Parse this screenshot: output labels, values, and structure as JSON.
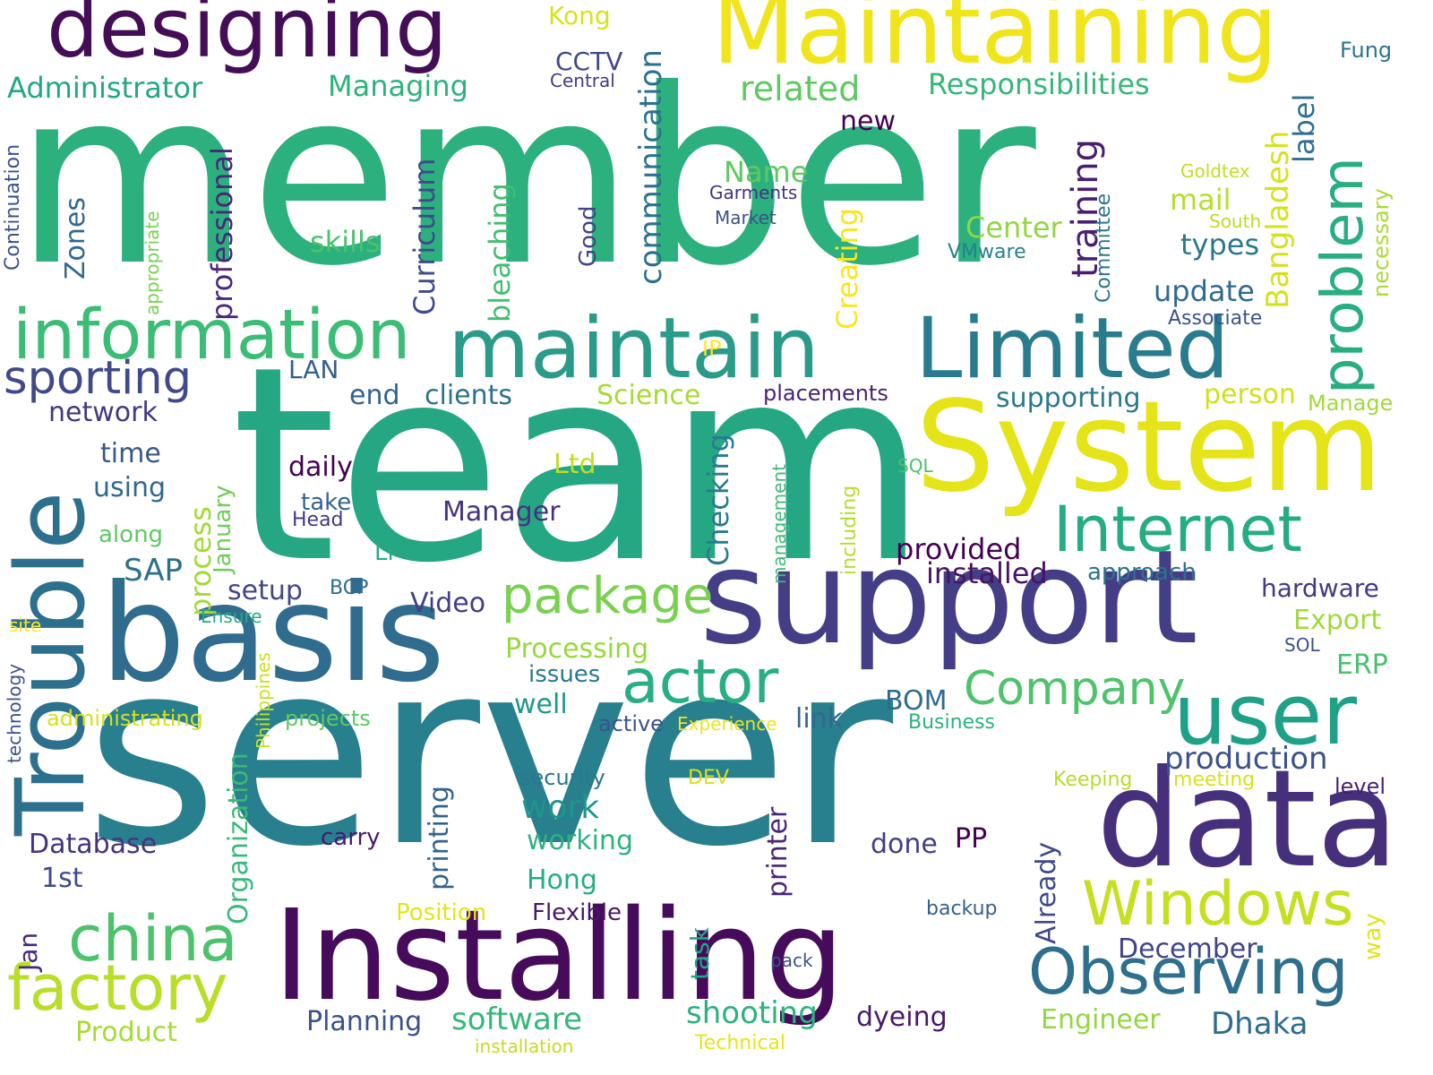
{
  "words": [
    {
      "text": "member",
      "color": "#2cb17e"
    },
    {
      "text": "team",
      "color": "#26a784"
    },
    {
      "text": "server",
      "color": "#287f8e"
    },
    {
      "text": "Installing",
      "color": "#470b5b"
    },
    {
      "text": "support",
      "color": "#433e85"
    },
    {
      "text": "basis",
      "color": "#2f6c8e"
    },
    {
      "text": "data",
      "color": "#46307c"
    },
    {
      "text": "System",
      "color": "#e5e419"
    },
    {
      "text": "Maintaining",
      "color": "#f0e51c"
    },
    {
      "text": "designing",
      "color": "#440e57"
    },
    {
      "text": "maintain",
      "color": "#2a9a89"
    },
    {
      "text": "Limited",
      "color": "#297b8e"
    },
    {
      "text": "information",
      "color": "#3bbd75"
    },
    {
      "text": "Trouble",
      "color": "#2d708e"
    },
    {
      "text": "user",
      "color": "#1fa187"
    },
    {
      "text": "Observing",
      "color": "#2e6f8e"
    },
    {
      "text": "Internet",
      "color": "#25ac82"
    },
    {
      "text": "Windows",
      "color": "#c5df21"
    },
    {
      "text": "factory",
      "color": "#b8de29"
    },
    {
      "text": "china",
      "color": "#4cc26c"
    },
    {
      "text": "actor",
      "color": "#28ae80"
    },
    {
      "text": "package",
      "color": "#7ad151"
    },
    {
      "text": "Company",
      "color": "#4ec36b"
    },
    {
      "text": "problem",
      "color": "#28ae80"
    },
    {
      "text": "sporting",
      "color": "#3e4a89"
    },
    {
      "text": "Responsibilities",
      "color": "#35b779"
    },
    {
      "text": "related",
      "color": "#5ec962"
    },
    {
      "text": "Managing",
      "color": "#2db27d"
    },
    {
      "text": "Administrator",
      "color": "#22a785"
    },
    {
      "text": "communication",
      "color": "#2c728e"
    },
    {
      "text": "Curriculum",
      "color": "#3e4c8a"
    },
    {
      "text": "bleaching",
      "color": "#42be71"
    },
    {
      "text": "professional",
      "color": "#482878"
    },
    {
      "text": "Creating",
      "color": "#f8e621"
    },
    {
      "text": "training",
      "color": "#481f70"
    },
    {
      "text": "Bangladesh",
      "color": "#d5e21a"
    },
    {
      "text": "label",
      "color": "#2d708e"
    },
    {
      "text": "Zones",
      "color": "#31688e"
    },
    {
      "text": "skills",
      "color": "#4ac16d"
    },
    {
      "text": "Name",
      "color": "#5ec962"
    },
    {
      "text": "Center",
      "color": "#90d743"
    },
    {
      "text": "mail",
      "color": "#b5de2b"
    },
    {
      "text": "types",
      "color": "#2a788e"
    },
    {
      "text": "update",
      "color": "#2f6b8e"
    },
    {
      "text": "new",
      "color": "#440154"
    },
    {
      "text": "Kong",
      "color": "#d8e219"
    },
    {
      "text": "CCTV",
      "color": "#3f4889"
    },
    {
      "text": "Central",
      "color": "#443983"
    },
    {
      "text": "Fung",
      "color": "#2c728e"
    },
    {
      "text": "Good",
      "color": "#414487"
    },
    {
      "text": "Garments",
      "color": "#46337e"
    },
    {
      "text": "Market",
      "color": "#3b518b"
    },
    {
      "text": "Goldtex",
      "color": "#bddf26"
    },
    {
      "text": "South",
      "color": "#b8de29"
    },
    {
      "text": "VMware",
      "color": "#277f8e"
    },
    {
      "text": "Committee",
      "color": "#2b758e"
    },
    {
      "text": "necessary",
      "color": "#a8db34"
    },
    {
      "text": "Associate",
      "color": "#3a548c"
    },
    {
      "text": "Continuation",
      "color": "#3b528b"
    },
    {
      "text": "appropriate",
      "color": "#7ad151"
    },
    {
      "text": "IP",
      "color": "#fde725"
    },
    {
      "text": "LAN",
      "color": "#355f8d"
    },
    {
      "text": "end",
      "color": "#33638d"
    },
    {
      "text": "clients",
      "color": "#2c728e"
    },
    {
      "text": "Science",
      "color": "#a5db36"
    },
    {
      "text": "placements",
      "color": "#482475"
    },
    {
      "text": "supporting",
      "color": "#2a788e"
    },
    {
      "text": "person",
      "color": "#d0e11c"
    },
    {
      "text": "Manage",
      "color": "#9fda3a"
    },
    {
      "text": "network",
      "color": "#453781"
    },
    {
      "text": "time",
      "color": "#38588c"
    },
    {
      "text": "using",
      "color": "#31688e"
    },
    {
      "text": "along",
      "color": "#5ec962"
    },
    {
      "text": "January",
      "color": "#6ece58"
    },
    {
      "text": "process",
      "color": "#a2da37"
    },
    {
      "text": "daily",
      "color": "#440154"
    },
    {
      "text": "take",
      "color": "#33638d"
    },
    {
      "text": "Head",
      "color": "#453781"
    },
    {
      "text": "Checking",
      "color": "#297b8e"
    },
    {
      "text": "management",
      "color": "#3dbc74"
    },
    {
      "text": "including",
      "color": "#b5de2b"
    },
    {
      "text": "SQL",
      "color": "#4ac16d"
    },
    {
      "text": "Ltd",
      "color": "#bddf26"
    },
    {
      "text": "Manager",
      "color": "#46337e"
    },
    {
      "text": "provided",
      "color": "#440154"
    },
    {
      "text": "installed",
      "color": "#471365"
    },
    {
      "text": "approach",
      "color": "#2c728e"
    },
    {
      "text": "hardware",
      "color": "#443983"
    },
    {
      "text": "SAP",
      "color": "#2d708e"
    },
    {
      "text": "Li",
      "color": "#27ad81"
    },
    {
      "text": "setup",
      "color": "#404688"
    },
    {
      "text": "BCP",
      "color": "#2f6c8e"
    },
    {
      "text": "Video",
      "color": "#433e85"
    },
    {
      "text": "Ensure",
      "color": "#25ac82"
    },
    {
      "text": "Export",
      "color": "#a0da39"
    },
    {
      "text": "SOL",
      "color": "#3b528b"
    },
    {
      "text": "ERP",
      "color": "#4ac16d"
    },
    {
      "text": "Processing",
      "color": "#98d83e"
    },
    {
      "text": "issues",
      "color": "#2a788e"
    },
    {
      "text": "well",
      "color": "#1f988b"
    },
    {
      "text": "site",
      "color": "#fde725"
    },
    {
      "text": "technology",
      "color": "#3b528b"
    },
    {
      "text": "Philippines",
      "color": "#c8e020"
    },
    {
      "text": "administrating",
      "color": "#d2e21b"
    },
    {
      "text": "projects",
      "color": "#5ec962"
    },
    {
      "text": "link",
      "color": "#31688e"
    },
    {
      "text": "BOM",
      "color": "#2f6c8e"
    },
    {
      "text": "active",
      "color": "#3a548c"
    },
    {
      "text": "Experience",
      "color": "#ece51b"
    },
    {
      "text": "Business",
      "color": "#2cb17e"
    },
    {
      "text": "production",
      "color": "#3b528b"
    },
    {
      "text": "security",
      "color": "#2a788e"
    },
    {
      "text": "DEV",
      "color": "#d8e219"
    },
    {
      "text": "Keeping",
      "color": "#b5de2b"
    },
    {
      "text": "meeting",
      "color": "#d8e219"
    },
    {
      "text": "level",
      "color": "#481f70"
    },
    {
      "text": "work",
      "color": "#1f968b"
    },
    {
      "text": "Organization",
      "color": "#38b977"
    },
    {
      "text": "printing",
      "color": "#33638d"
    },
    {
      "text": "printer",
      "color": "#482677"
    },
    {
      "text": "Database",
      "color": "#46337e"
    },
    {
      "text": "carry",
      "color": "#481a6c"
    },
    {
      "text": "done",
      "color": "#433e85"
    },
    {
      "text": "PP",
      "color": "#440154"
    },
    {
      "text": "working",
      "color": "#2db27d"
    },
    {
      "text": "1st",
      "color": "#3e4c8a"
    },
    {
      "text": "Hong",
      "color": "#26ad81"
    },
    {
      "text": "Already",
      "color": "#3e4a89"
    },
    {
      "text": "Jan",
      "color": "#482878"
    },
    {
      "text": "Position",
      "color": "#e5e419"
    },
    {
      "text": "Flexible",
      "color": "#481668"
    },
    {
      "text": "backup",
      "color": "#35608d"
    },
    {
      "text": "task",
      "color": "#22a785"
    },
    {
      "text": "pack",
      "color": "#3a548c"
    },
    {
      "text": "December",
      "color": "#414487"
    },
    {
      "text": "way",
      "color": "#e2e418"
    },
    {
      "text": "Planning",
      "color": "#3b528b"
    },
    {
      "text": "software",
      "color": "#35b779"
    },
    {
      "text": "shooting",
      "color": "#2db27d"
    },
    {
      "text": "dyeing",
      "color": "#481a6c"
    },
    {
      "text": "Engineer",
      "color": "#93d741"
    },
    {
      "text": "Dhaka",
      "color": "#2f6c8e"
    },
    {
      "text": "Product",
      "color": "#a5db36"
    },
    {
      "text": "installation",
      "color": "#bddf26"
    },
    {
      "text": "Technical",
      "color": "#e5e419"
    }
  ]
}
